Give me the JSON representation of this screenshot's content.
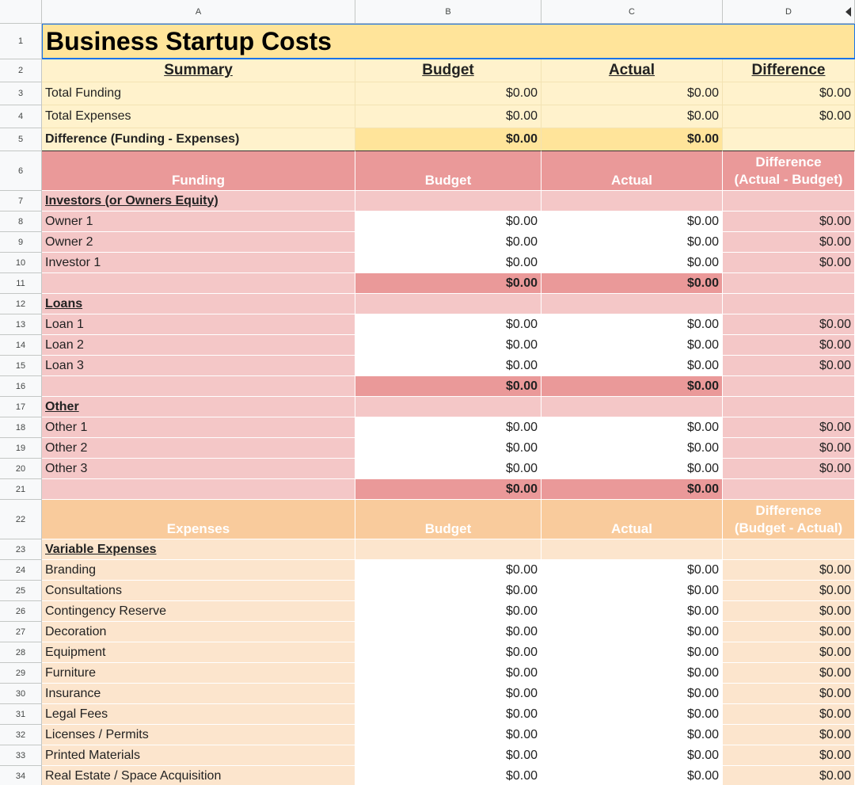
{
  "columns": [
    "A",
    "B",
    "C",
    "D"
  ],
  "title": "Business Startup Costs",
  "summary": {
    "headers": [
      "Summary",
      "Budget",
      "Actual",
      "Difference"
    ],
    "rows": [
      {
        "label": "Total Funding",
        "budget": "$0.00",
        "actual": "$0.00",
        "difference": "$0.00"
      },
      {
        "label": "Total Expenses",
        "budget": "$0.00",
        "actual": "$0.00",
        "difference": "$0.00"
      },
      {
        "label": "Difference (Funding - Expenses)",
        "budget": "$0.00",
        "actual": "$0.00",
        "difference": ""
      }
    ]
  },
  "funding": {
    "headers": [
      "Funding",
      "Budget",
      "Actual"
    ],
    "diff_header": [
      "Difference",
      "(Actual - Budget)"
    ],
    "sections": [
      {
        "title": "Investors (or Owners Equity)",
        "items": [
          {
            "label": "Owner 1",
            "budget": "$0.00",
            "actual": "$0.00",
            "difference": "$0.00"
          },
          {
            "label": "Owner 2",
            "budget": "$0.00",
            "actual": "$0.00",
            "difference": "$0.00"
          },
          {
            "label": "Investor 1",
            "budget": "$0.00",
            "actual": "$0.00",
            "difference": "$0.00"
          }
        ],
        "subtotal": {
          "budget": "$0.00",
          "actual": "$0.00"
        }
      },
      {
        "title": "Loans",
        "items": [
          {
            "label": "Loan 1",
            "budget": "$0.00",
            "actual": "$0.00",
            "difference": "$0.00"
          },
          {
            "label": "Loan 2",
            "budget": "$0.00",
            "actual": "$0.00",
            "difference": "$0.00"
          },
          {
            "label": "Loan 3",
            "budget": "$0.00",
            "actual": "$0.00",
            "difference": "$0.00"
          }
        ],
        "subtotal": {
          "budget": "$0.00",
          "actual": "$0.00"
        }
      },
      {
        "title": "Other",
        "items": [
          {
            "label": "Other 1",
            "budget": "$0.00",
            "actual": "$0.00",
            "difference": "$0.00"
          },
          {
            "label": "Other 2",
            "budget": "$0.00",
            "actual": "$0.00",
            "difference": "$0.00"
          },
          {
            "label": "Other 3",
            "budget": "$0.00",
            "actual": "$0.00",
            "difference": "$0.00"
          }
        ],
        "subtotal": {
          "budget": "$0.00",
          "actual": "$0.00"
        }
      }
    ]
  },
  "expenses": {
    "headers": [
      "Expenses",
      "Budget",
      "Actual"
    ],
    "diff_header": [
      "Difference",
      "(Budget - Actual)"
    ],
    "section_title": "Variable Expenses",
    "items": [
      {
        "label": "Branding",
        "budget": "$0.00",
        "actual": "$0.00",
        "difference": "$0.00"
      },
      {
        "label": "Consultations",
        "budget": "$0.00",
        "actual": "$0.00",
        "difference": "$0.00"
      },
      {
        "label": "Contingency Reserve",
        "budget": "$0.00",
        "actual": "$0.00",
        "difference": "$0.00"
      },
      {
        "label": "Decoration",
        "budget": "$0.00",
        "actual": "$0.00",
        "difference": "$0.00"
      },
      {
        "label": "Equipment",
        "budget": "$0.00",
        "actual": "$0.00",
        "difference": "$0.00"
      },
      {
        "label": "Furniture",
        "budget": "$0.00",
        "actual": "$0.00",
        "difference": "$0.00"
      },
      {
        "label": "Insurance",
        "budget": "$0.00",
        "actual": "$0.00",
        "difference": "$0.00"
      },
      {
        "label": "Legal Fees",
        "budget": "$0.00",
        "actual": "$0.00",
        "difference": "$0.00"
      },
      {
        "label": "Licenses / Permits",
        "budget": "$0.00",
        "actual": "$0.00",
        "difference": "$0.00"
      },
      {
        "label": "Printed Materials",
        "budget": "$0.00",
        "actual": "$0.00",
        "difference": "$0.00"
      },
      {
        "label": "Real Estate / Space Acquisition",
        "budget": "$0.00",
        "actual": "$0.00",
        "difference": "$0.00"
      }
    ]
  },
  "colors": {
    "title_fill": "#ffe49a",
    "summary_fill": "#fff2cc",
    "funding_header": "#ea9999",
    "funding_light": "#f4c7c7",
    "expenses_header": "#f9cb9c",
    "expenses_light": "#fce5cd",
    "selection": "#1a73e8"
  }
}
